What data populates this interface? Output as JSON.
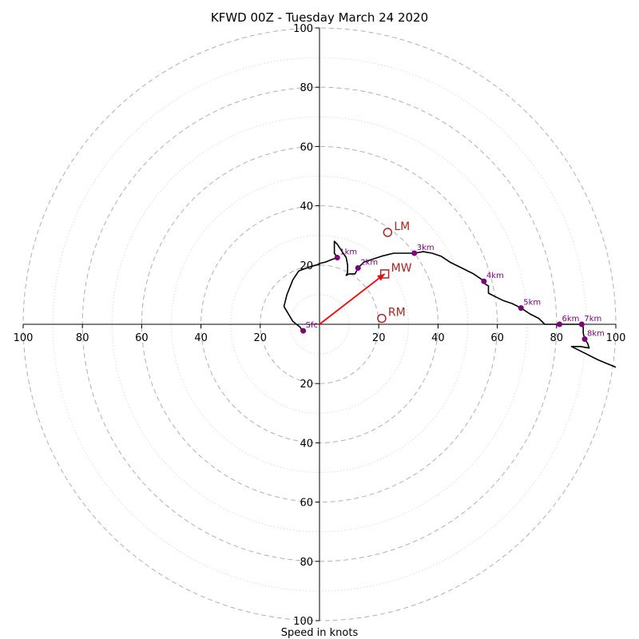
{
  "chart_data": {
    "type": "line",
    "chart_kind": "hodograph",
    "title": "KFWD 00Z - Tuesday March 24 2020",
    "xlabel": "Speed in knots",
    "ylabel": "",
    "xlim": [
      -100,
      100
    ],
    "ylim": [
      -100,
      100
    ],
    "units": "knots",
    "grid": true,
    "ring_major": [
      20,
      40,
      60,
      80,
      100
    ],
    "ring_minor": [
      10,
      30,
      50,
      70,
      90
    ],
    "ticks": {
      "left": [
        "100",
        "80",
        "60",
        "40",
        "20"
      ],
      "right": [
        "20",
        "40",
        "60",
        "80",
        "100"
      ],
      "up": [
        "20",
        "40",
        "60",
        "80",
        "100"
      ],
      "down": [
        "20",
        "40",
        "60",
        "80",
        "100"
      ]
    },
    "hodograph_series": {
      "name": "",
      "color": "#000000",
      "points": [
        [
          -6,
          -2
        ],
        [
          -6.5,
          -1
        ],
        [
          -9,
          1
        ],
        [
          -12,
          6
        ],
        [
          -11,
          10
        ],
        [
          -9,
          15
        ],
        [
          -7,
          18
        ],
        [
          -3,
          19.5
        ],
        [
          -1,
          20
        ],
        [
          0,
          20.5
        ],
        [
          2,
          21
        ],
        [
          4.5,
          22
        ],
        [
          6,
          22.5
        ],
        [
          5,
          24
        ],
        [
          5,
          28
        ],
        [
          6,
          27
        ],
        [
          7,
          25.5
        ],
        [
          8,
          24
        ],
        [
          9,
          22.5
        ],
        [
          9.5,
          20
        ],
        [
          9.5,
          17.5
        ],
        [
          9,
          16.5
        ],
        [
          10,
          17
        ],
        [
          12,
          17
        ],
        [
          12.5,
          18
        ],
        [
          13,
          19
        ],
        [
          15,
          21
        ],
        [
          18,
          22
        ],
        [
          21,
          23
        ],
        [
          25,
          24
        ],
        [
          28,
          24
        ],
        [
          32,
          24
        ],
        [
          35,
          24.5
        ],
        [
          38,
          24
        ],
        [
          41,
          23
        ],
        [
          44,
          21
        ],
        [
          48,
          19
        ],
        [
          52,
          17
        ],
        [
          55,
          15
        ],
        [
          56,
          13.5
        ],
        [
          57,
          13
        ],
        [
          57,
          10.5
        ],
        [
          59,
          9.5
        ],
        [
          62,
          8
        ],
        [
          65,
          7
        ],
        [
          68,
          5.5
        ],
        [
          71,
          3.5
        ],
        [
          74,
          2
        ],
        [
          76,
          0
        ],
        [
          78,
          0
        ],
        [
          81,
          0
        ],
        [
          84,
          0
        ],
        [
          87,
          0
        ],
        [
          88.5,
          0
        ],
        [
          89,
          -1
        ],
        [
          89,
          -3
        ],
        [
          89.5,
          -5
        ],
        [
          90.5,
          -6.5
        ],
        [
          91,
          -8
        ],
        [
          88,
          -7.5
        ],
        [
          85,
          -7.5
        ],
        [
          89,
          -9.5
        ],
        [
          94,
          -12
        ],
        [
          100,
          -14.5
        ]
      ]
    },
    "height_markers": {
      "color": "#800080",
      "points": [
        {
          "label": "Sfc",
          "u": -5.5,
          "v": -2.2
        },
        {
          "label": "1km",
          "u": 6,
          "v": 22.5
        },
        {
          "label": "2km",
          "u": 13,
          "v": 19
        },
        {
          "label": "3km",
          "u": 32,
          "v": 24
        },
        {
          "label": "4km",
          "u": 55.5,
          "v": 14.5
        },
        {
          "label": "5km",
          "u": 68,
          "v": 5.5
        },
        {
          "label": "6km",
          "u": 81,
          "v": 0
        },
        {
          "label": "7km",
          "u": 88.5,
          "v": 0
        },
        {
          "label": "8km",
          "u": 89.5,
          "v": -5
        }
      ]
    },
    "storm_motion": {
      "color": "#ff0000",
      "label_color": "#b22222",
      "lm": {
        "label": "LM",
        "u": 23,
        "v": 31
      },
      "rm": {
        "label": "RM",
        "u": 21,
        "v": 2
      },
      "mw": {
        "label": "MW",
        "u": 22,
        "v": 17
      },
      "arrow_from": [
        0,
        0
      ],
      "arrow_to": [
        22,
        17
      ]
    }
  }
}
